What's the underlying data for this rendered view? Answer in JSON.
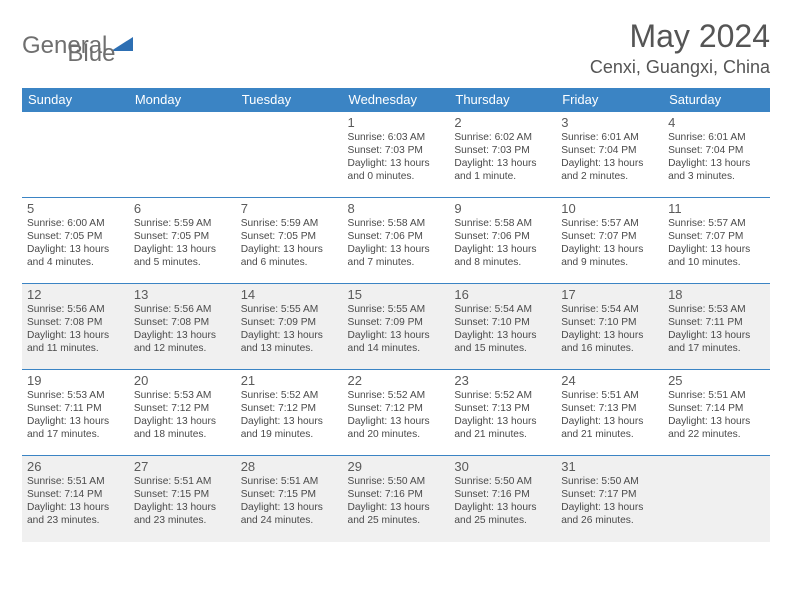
{
  "brand": {
    "name_a": "General",
    "name_b": "Blue",
    "icon_color": "#2d6fb3"
  },
  "title": "May 2024",
  "location": "Cenxi, Guangxi, China",
  "colors": {
    "header_bg": "#3b84c4",
    "header_text": "#ffffff",
    "border": "#3b84c4",
    "alt_row_bg": "#f0f0f0",
    "text": "#4a4a4a"
  },
  "day_headers": [
    "Sunday",
    "Monday",
    "Tuesday",
    "Wednesday",
    "Thursday",
    "Friday",
    "Saturday"
  ],
  "weeks": [
    [
      {
        "n": "",
        "sr": "",
        "ss": "",
        "dl": ""
      },
      {
        "n": "",
        "sr": "",
        "ss": "",
        "dl": ""
      },
      {
        "n": "",
        "sr": "",
        "ss": "",
        "dl": ""
      },
      {
        "n": "1",
        "sr": "6:03 AM",
        "ss": "7:03 PM",
        "dl": "13 hours and 0 minutes."
      },
      {
        "n": "2",
        "sr": "6:02 AM",
        "ss": "7:03 PM",
        "dl": "13 hours and 1 minute."
      },
      {
        "n": "3",
        "sr": "6:01 AM",
        "ss": "7:04 PM",
        "dl": "13 hours and 2 minutes."
      },
      {
        "n": "4",
        "sr": "6:01 AM",
        "ss": "7:04 PM",
        "dl": "13 hours and 3 minutes."
      }
    ],
    [
      {
        "n": "5",
        "sr": "6:00 AM",
        "ss": "7:05 PM",
        "dl": "13 hours and 4 minutes."
      },
      {
        "n": "6",
        "sr": "5:59 AM",
        "ss": "7:05 PM",
        "dl": "13 hours and 5 minutes."
      },
      {
        "n": "7",
        "sr": "5:59 AM",
        "ss": "7:05 PM",
        "dl": "13 hours and 6 minutes."
      },
      {
        "n": "8",
        "sr": "5:58 AM",
        "ss": "7:06 PM",
        "dl": "13 hours and 7 minutes."
      },
      {
        "n": "9",
        "sr": "5:58 AM",
        "ss": "7:06 PM",
        "dl": "13 hours and 8 minutes."
      },
      {
        "n": "10",
        "sr": "5:57 AM",
        "ss": "7:07 PM",
        "dl": "13 hours and 9 minutes."
      },
      {
        "n": "11",
        "sr": "5:57 AM",
        "ss": "7:07 PM",
        "dl": "13 hours and 10 minutes."
      }
    ],
    [
      {
        "n": "12",
        "sr": "5:56 AM",
        "ss": "7:08 PM",
        "dl": "13 hours and 11 minutes."
      },
      {
        "n": "13",
        "sr": "5:56 AM",
        "ss": "7:08 PM",
        "dl": "13 hours and 12 minutes."
      },
      {
        "n": "14",
        "sr": "5:55 AM",
        "ss": "7:09 PM",
        "dl": "13 hours and 13 minutes."
      },
      {
        "n": "15",
        "sr": "5:55 AM",
        "ss": "7:09 PM",
        "dl": "13 hours and 14 minutes."
      },
      {
        "n": "16",
        "sr": "5:54 AM",
        "ss": "7:10 PM",
        "dl": "13 hours and 15 minutes."
      },
      {
        "n": "17",
        "sr": "5:54 AM",
        "ss": "7:10 PM",
        "dl": "13 hours and 16 minutes."
      },
      {
        "n": "18",
        "sr": "5:53 AM",
        "ss": "7:11 PM",
        "dl": "13 hours and 17 minutes."
      }
    ],
    [
      {
        "n": "19",
        "sr": "5:53 AM",
        "ss": "7:11 PM",
        "dl": "13 hours and 17 minutes."
      },
      {
        "n": "20",
        "sr": "5:53 AM",
        "ss": "7:12 PM",
        "dl": "13 hours and 18 minutes."
      },
      {
        "n": "21",
        "sr": "5:52 AM",
        "ss": "7:12 PM",
        "dl": "13 hours and 19 minutes."
      },
      {
        "n": "22",
        "sr": "5:52 AM",
        "ss": "7:12 PM",
        "dl": "13 hours and 20 minutes."
      },
      {
        "n": "23",
        "sr": "5:52 AM",
        "ss": "7:13 PM",
        "dl": "13 hours and 21 minutes."
      },
      {
        "n": "24",
        "sr": "5:51 AM",
        "ss": "7:13 PM",
        "dl": "13 hours and 21 minutes."
      },
      {
        "n": "25",
        "sr": "5:51 AM",
        "ss": "7:14 PM",
        "dl": "13 hours and 22 minutes."
      }
    ],
    [
      {
        "n": "26",
        "sr": "5:51 AM",
        "ss": "7:14 PM",
        "dl": "13 hours and 23 minutes."
      },
      {
        "n": "27",
        "sr": "5:51 AM",
        "ss": "7:15 PM",
        "dl": "13 hours and 23 minutes."
      },
      {
        "n": "28",
        "sr": "5:51 AM",
        "ss": "7:15 PM",
        "dl": "13 hours and 24 minutes."
      },
      {
        "n": "29",
        "sr": "5:50 AM",
        "ss": "7:16 PM",
        "dl": "13 hours and 25 minutes."
      },
      {
        "n": "30",
        "sr": "5:50 AM",
        "ss": "7:16 PM",
        "dl": "13 hours and 25 minutes."
      },
      {
        "n": "31",
        "sr": "5:50 AM",
        "ss": "7:17 PM",
        "dl": "13 hours and 26 minutes."
      },
      {
        "n": "",
        "sr": "",
        "ss": "",
        "dl": ""
      }
    ]
  ],
  "labels": {
    "sunrise": "Sunrise:",
    "sunset": "Sunset:",
    "daylight": "Daylight:"
  }
}
